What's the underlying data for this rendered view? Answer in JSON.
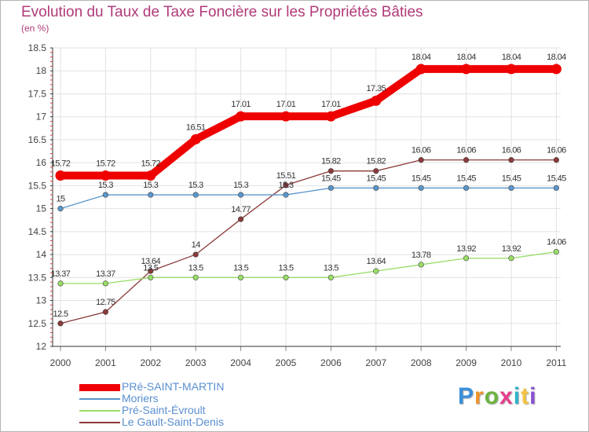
{
  "chart_data": {
    "type": "line",
    "title": "Evolution du Taux de Taxe Foncière sur les Propriétés Bâties",
    "ylabel": "(en %)",
    "ylim": [
      12,
      18.5
    ],
    "y_ticks": [
      "12",
      "12.5",
      "13",
      "13.5",
      "14",
      "14.5",
      "15",
      "15.5",
      "16",
      "16.5",
      "17",
      "17.5",
      "18",
      "18.5"
    ],
    "categories": [
      "2000",
      "2001",
      "2002",
      "2003",
      "2004",
      "2005",
      "2006",
      "2007",
      "2008",
      "2009",
      "2010",
      "2011"
    ],
    "grid": true,
    "series": [
      {
        "name": "PRé-SAINT-MARTIN",
        "color": "#ee0000",
        "values": [
          15.72,
          15.72,
          15.72,
          16.51,
          17.01,
          17.01,
          17.01,
          17.35,
          18.04,
          18.04,
          18.04,
          18.04
        ],
        "labels": [
          "15.72",
          "15.72",
          "15.72",
          "16.51",
          "17.01",
          "17.01",
          "17.01",
          "17.35",
          "18.04",
          "18.04",
          "18.04",
          "18.04"
        ]
      },
      {
        "name": "Moriers",
        "color": "#5a96cc",
        "values": [
          15,
          15.3,
          15.3,
          15.3,
          15.3,
          15.3,
          15.45,
          15.45,
          15.45,
          15.45,
          15.45,
          15.45
        ],
        "labels": [
          "15",
          "15.3",
          "15.3",
          "15.3",
          "15.3",
          "15.3",
          "15.45",
          "15.45",
          "15.45",
          "15.45",
          "15.45",
          "15.45"
        ]
      },
      {
        "name": "Pré-Saint-Évroult",
        "color": "#99dd66",
        "values": [
          13.37,
          13.37,
          13.5,
          13.5,
          13.5,
          13.5,
          13.5,
          13.64,
          13.78,
          13.92,
          13.92,
          14.06
        ],
        "labels": [
          "13.37",
          "13.37",
          "13.5",
          "13.5",
          "13.5",
          "13.5",
          "13.5",
          "13.64",
          "13.78",
          "13.92",
          "13.92",
          "14.06"
        ]
      },
      {
        "name": "Le Gault-Saint-Denis",
        "color": "#8b3a3a",
        "values": [
          12.5,
          12.75,
          13.64,
          14,
          14.77,
          15.51,
          15.82,
          15.82,
          16.06,
          16.06,
          16.06,
          16.06
        ],
        "labels": [
          "12.5",
          "12.75",
          "13.64",
          "14",
          "14.77",
          "15.51",
          "15.82",
          "15.82",
          "16.06",
          "16.06",
          "16.06",
          "16.06"
        ]
      }
    ]
  },
  "legend": {
    "items": [
      {
        "label": "PRé-SAINT-MARTIN",
        "color": "#ee0000"
      },
      {
        "label": "Moriers",
        "color": "#5a96cc"
      },
      {
        "label": "Pré-Saint-Évroult",
        "color": "#99dd66"
      },
      {
        "label": "Le Gault-Saint-Denis",
        "color": "#8b3a3a"
      }
    ]
  },
  "brand": {
    "text": "Proxiti",
    "colors": [
      "#3a8fd9",
      "#f0932b",
      "#6cb33f",
      "#e63f8c",
      "#2fb3c9",
      "#f6c343",
      "#8a4fd1"
    ]
  }
}
